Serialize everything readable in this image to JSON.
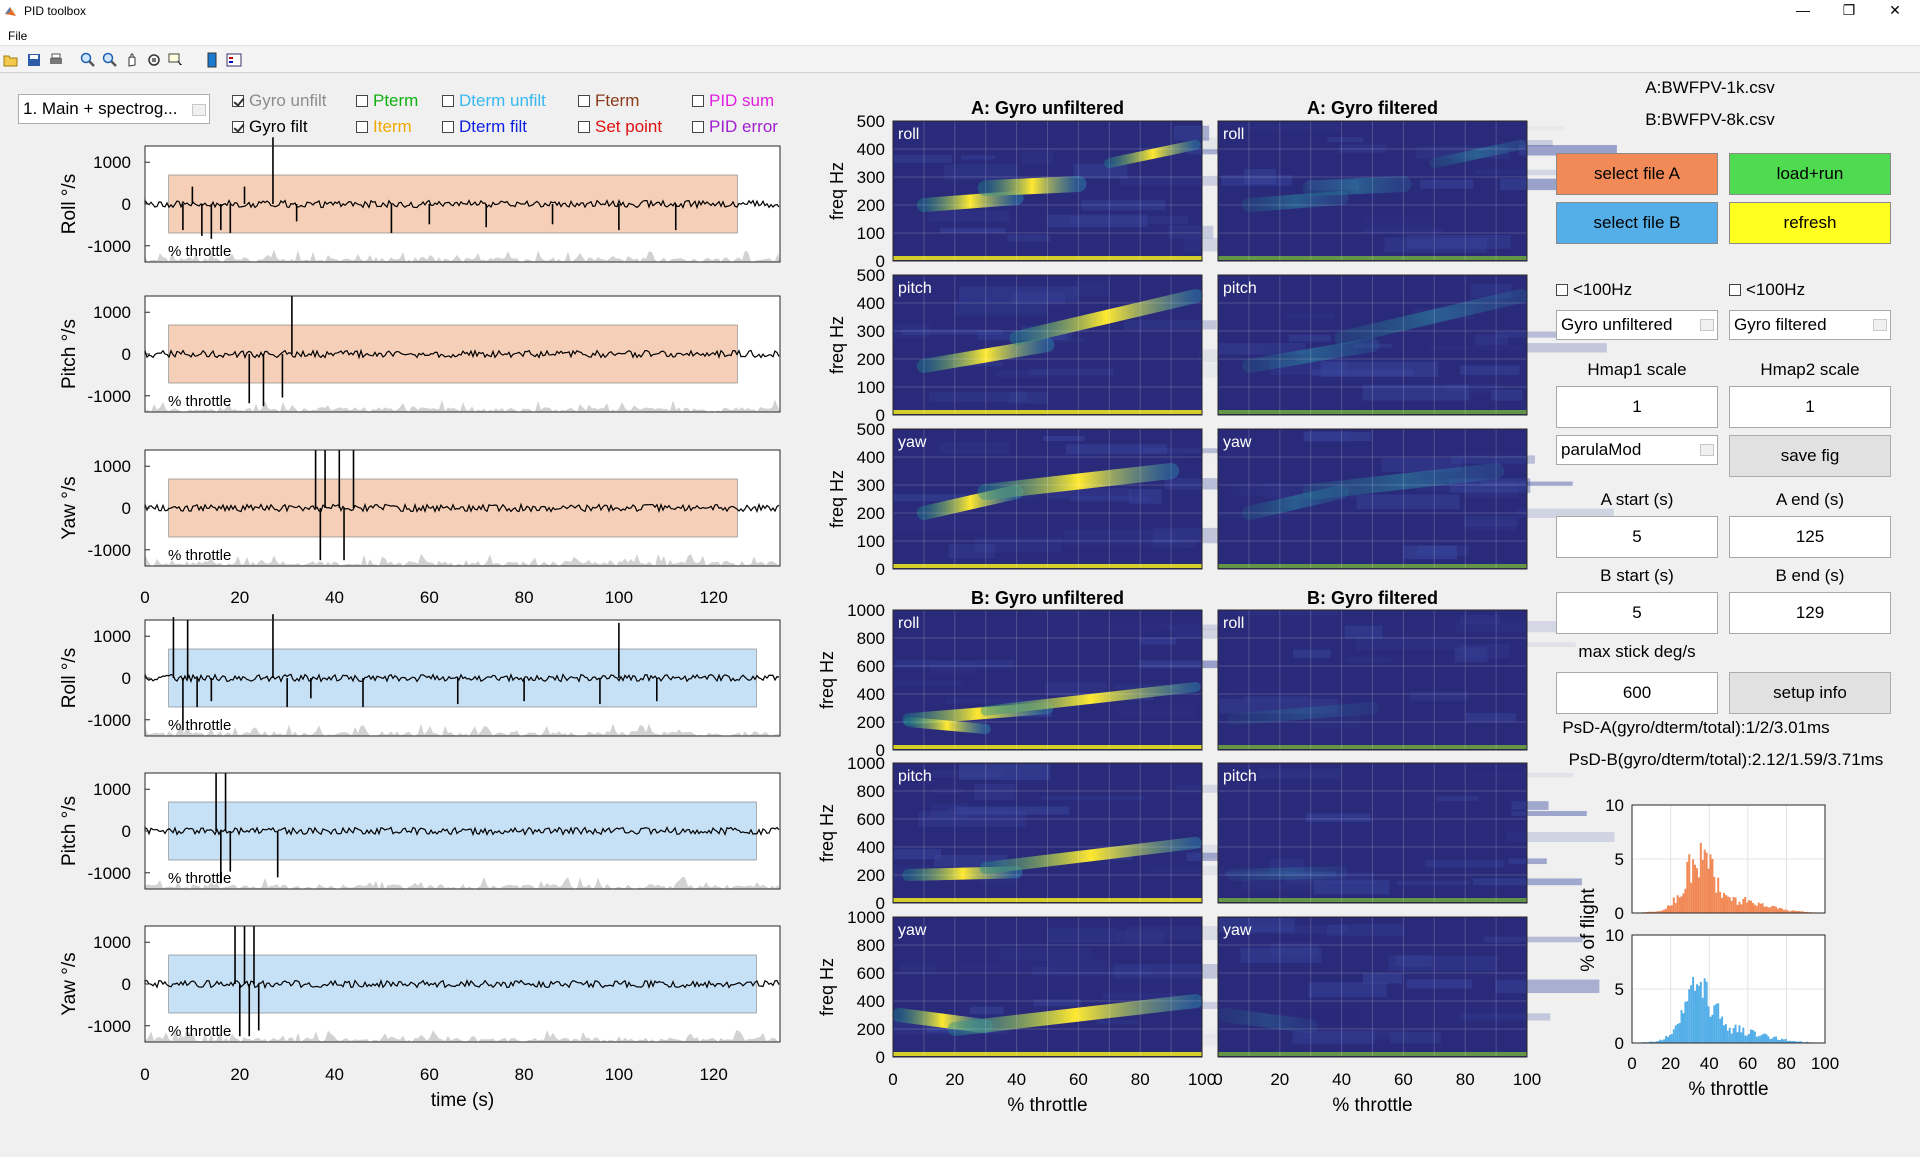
{
  "window": {
    "title": "PID toolbox",
    "min": "—",
    "restore": "❐",
    "close": "✕"
  },
  "menu": {
    "file": "File"
  },
  "toolbar": {
    "icons": [
      "open-icon",
      "save-icon",
      "print-icon",
      "zoom-in-icon",
      "zoom-out-icon",
      "pan-icon",
      "rotate-icon",
      "data-cursor-icon",
      "colorbar-icon",
      "legend-icon"
    ]
  },
  "controls": {
    "mode_select": "1. Main + spectrog...",
    "checkboxes": [
      {
        "label": "Gyro unfilt",
        "checked": true,
        "color": "#8c8c8c"
      },
      {
        "label": "Gyro filt",
        "checked": true,
        "color": "#000000"
      },
      {
        "label": "Pterm",
        "checked": false,
        "color": "#10b010"
      },
      {
        "label": "Iterm",
        "checked": false,
        "color": "#f0a800"
      },
      {
        "label": "Dterm unfilt",
        "checked": false,
        "color": "#38b8f0"
      },
      {
        "label": "Dterm filt",
        "checked": false,
        "color": "#1020e0"
      },
      {
        "label": "Fterm",
        "checked": false,
        "color": "#8a3a1a"
      },
      {
        "label": "Set point",
        "checked": false,
        "color": "#e01010"
      },
      {
        "label": "PID sum",
        "checked": false,
        "color": "#e020e0"
      },
      {
        "label": "PID error",
        "checked": false,
        "color": "#a020d0"
      }
    ]
  },
  "colors": {
    "file_a": "#f28a58",
    "file_b": "#54aee8",
    "orange_fill": "#f6cfb8",
    "blue_fill": "#c6e0f6",
    "load": "#4fdb4f",
    "refresh": "#ffff20"
  },
  "timeplots": {
    "xticks": [
      "0",
      "20",
      "40",
      "60",
      "80",
      "100",
      "120"
    ],
    "yticks": [
      "1000",
      "0",
      "-1000"
    ],
    "throttle_label": "% throttle",
    "xlabel": "time (s)",
    "a": {
      "ylabels": [
        "Roll °/s",
        "Pitch °/s",
        "Yaw °/s"
      ],
      "range_s": [
        5,
        125
      ]
    },
    "b": {
      "ylabels": [
        "Roll °/s",
        "Pitch °/s",
        "Yaw °/s"
      ],
      "range_s": [
        5,
        129
      ]
    }
  },
  "spectrograms": {
    "a_titles": [
      "A: Gyro unfiltered",
      "A: Gyro filtered"
    ],
    "b_titles": [
      "B: Gyro unfiltered",
      "B: Gyro filtered"
    ],
    "axes": [
      "roll",
      "pitch",
      "yaw"
    ],
    "ylabel": "freq Hz",
    "a_yticks": [
      "500",
      "400",
      "300",
      "200",
      "100",
      "0"
    ],
    "b_yticks": [
      "1000",
      "800",
      "600",
      "400",
      "200",
      "0"
    ],
    "xticks": [
      "0",
      "20",
      "40",
      "60",
      "80",
      "100"
    ],
    "xlabel": "% throttle"
  },
  "files": {
    "a": "A:BWFPV-1k.csv",
    "b": "B:BWFPV-8k.csv"
  },
  "buttons": {
    "select_a": "select file A",
    "load_run": "load+run",
    "select_b": "select file B",
    "refresh": "refresh",
    "save_fig": "save fig",
    "setup_info": "setup info"
  },
  "settings": {
    "lowpass1": "<100Hz",
    "lowpass2": "<100Hz",
    "hmap1_source": "Gyro unfiltered",
    "hmap2_source": "Gyro filtered",
    "hmap1_scale_label": "Hmap1 scale",
    "hmap2_scale_label": "Hmap2 scale",
    "hmap1_scale": "1",
    "hmap2_scale": "1",
    "colormap": "parulaMod",
    "a_start_label": "A start (s)",
    "a_end_label": "A end (s)",
    "a_start": "5",
    "a_end": "125",
    "b_start_label": "B start (s)",
    "b_end_label": "B end (s)",
    "b_start": "5",
    "b_end": "129",
    "max_stick_label": "max stick deg/s",
    "max_stick": "600",
    "psd_a": "PsD-A(gyro/dterm/total):1/2/3.01ms",
    "psd_b": "PsD-B(gyro/dterm/total):2.12/1.59/3.71ms"
  },
  "histogram": {
    "yticks": [
      "10",
      "5",
      "0"
    ],
    "xticks": [
      "0",
      "20",
      "40",
      "60",
      "80",
      "100"
    ],
    "ylabel": "% of flight",
    "xlabel": "% throttle"
  }
}
